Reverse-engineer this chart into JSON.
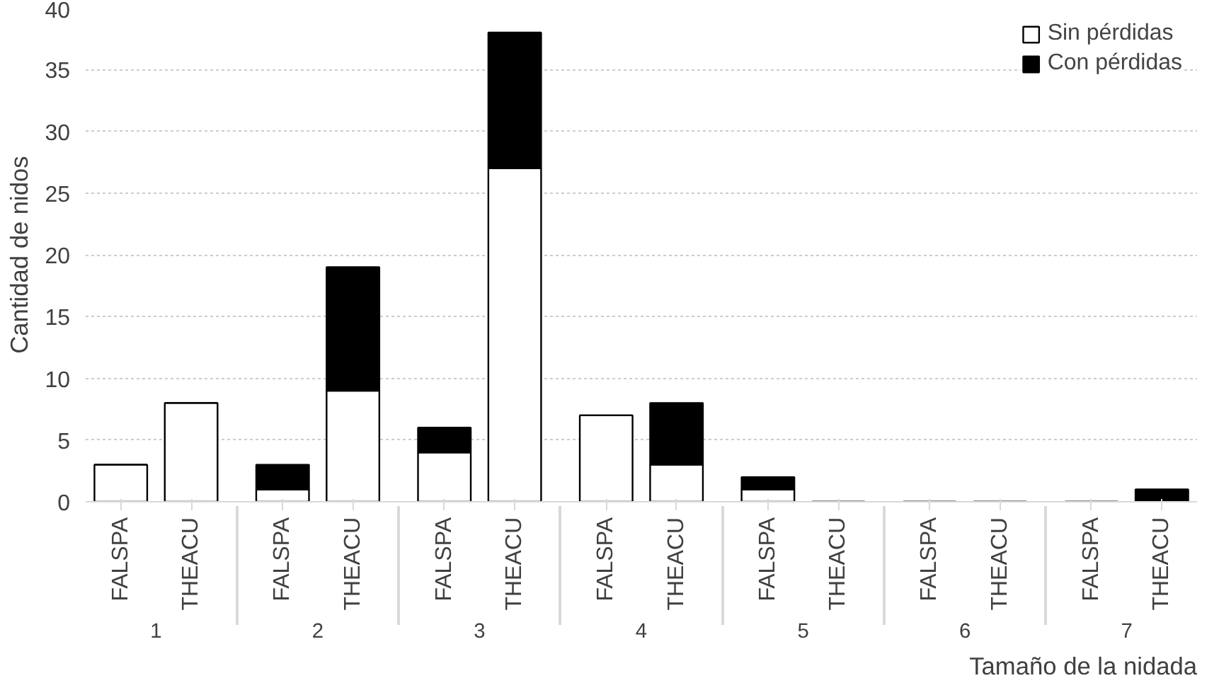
{
  "chart_data": {
    "type": "bar",
    "stacked": true,
    "xlabel": "Tamaño de la nidada",
    "ylabel": "Cantidad de nidos",
    "categories": [
      "FALSPA",
      "THEACU",
      "FALSPA",
      "THEACU",
      "FALSPA",
      "THEACU",
      "FALSPA",
      "THEACU",
      "FALSPA",
      "THEACU",
      "FALSPA",
      "THEACU",
      "FALSPA",
      "THEACU"
    ],
    "annotations": [
      "1",
      "2",
      "3",
      "4",
      "5",
      "6",
      "7"
    ],
    "series": [
      {
        "name": "Sin pérdidas",
        "color": "#ffffff",
        "values": [
          3,
          8,
          1,
          9,
          4,
          27,
          7,
          3,
          1,
          0,
          0,
          0,
          0,
          0
        ]
      },
      {
        "name": "Con pérdidas",
        "color": "#000000",
        "values": [
          0,
          0,
          2,
          10,
          2,
          11,
          0,
          5,
          1,
          0,
          0,
          0,
          0,
          1
        ]
      }
    ],
    "ylim": [
      0,
      40
    ],
    "yticks": [
      0,
      5,
      10,
      15,
      20,
      25,
      30,
      35,
      40
    ],
    "grid": "y",
    "legend": "top right"
  }
}
